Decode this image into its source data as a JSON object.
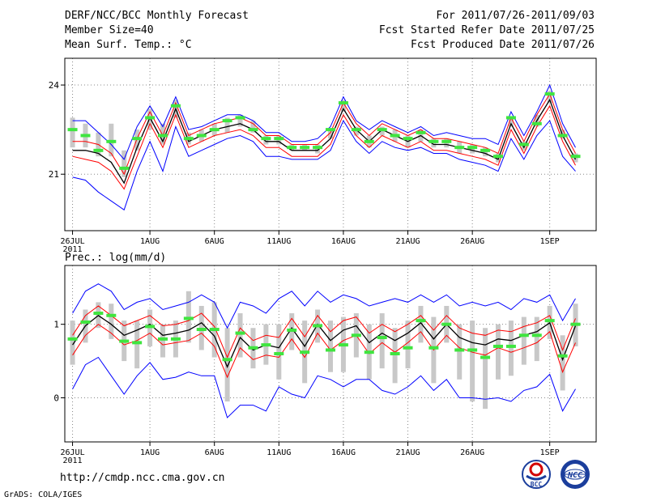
{
  "header": {
    "title": "DERF/NCC/BCC Monthly Forecast",
    "member_size": "Member Size=40",
    "variable": "Mean Surf. Temp.: °C",
    "period": "For 2011/07/26-2011/09/03",
    "started": "Fcst Started Refer Date 2011/07/25",
    "produced": "Fcst Produced Date 2011/07/26"
  },
  "footer": {
    "url": "http://cmdp.ncc.cma.gov.cn",
    "grads": "GrADS: COLA/IGES",
    "logo_left_text": "BCC",
    "logo_right_text": "NCC"
  },
  "colors": {
    "box": "#c8c8c8",
    "median": "#3fe53f",
    "mean": "#000000",
    "sd": "#ff0000",
    "extreme": "#0000ff",
    "grid": "#888888"
  },
  "chart_data": [
    {
      "id": "temp",
      "type": "line",
      "title": "",
      "ylabel": "Mean Surf. Temp.: °C",
      "ylim": [
        19.1,
        24.9
      ],
      "yticks": [
        21,
        24
      ],
      "xlim": [
        -0.6,
        40.6
      ],
      "xticks": [
        {
          "x": 0,
          "label": "26JUL",
          "sub": "2011"
        },
        {
          "x": 6,
          "label": "1AUG"
        },
        {
          "x": 11,
          "label": "6AUG"
        },
        {
          "x": 16,
          "label": "11AUG"
        },
        {
          "x": 21,
          "label": "16AUG"
        },
        {
          "x": 26,
          "label": "21AUG"
        },
        {
          "x": 31,
          "label": "26AUG"
        },
        {
          "x": 37,
          "label": "1SEP"
        }
      ],
      "x": [
        0,
        1,
        2,
        3,
        4,
        5,
        6,
        7,
        8,
        9,
        10,
        11,
        12,
        13,
        14,
        15,
        16,
        17,
        18,
        19,
        20,
        21,
        22,
        23,
        24,
        25,
        26,
        27,
        28,
        29,
        30,
        31,
        32,
        33,
        34,
        35,
        36,
        37,
        38,
        39
      ],
      "series": [
        {
          "name": "mean",
          "values": [
            21.8,
            21.8,
            21.7,
            21.4,
            20.7,
            21.9,
            22.9,
            22.1,
            23.2,
            22.1,
            22.3,
            22.5,
            22.6,
            22.7,
            22.5,
            22.1,
            22.1,
            21.8,
            21.8,
            21.8,
            22.2,
            23.2,
            22.5,
            22.1,
            22.5,
            22.3,
            22.1,
            22.3,
            22.0,
            22.0,
            21.9,
            21.8,
            21.7,
            21.5,
            22.7,
            21.9,
            22.8,
            23.5,
            22.3,
            21.5
          ]
        },
        {
          "name": "sd_upper",
          "values": [
            22.1,
            22.1,
            22.0,
            21.7,
            21.0,
            22.2,
            23.1,
            22.3,
            23.4,
            22.3,
            22.5,
            22.7,
            22.8,
            22.9,
            22.7,
            22.3,
            22.3,
            22.0,
            22.0,
            22.0,
            22.4,
            23.4,
            22.7,
            22.3,
            22.7,
            22.5,
            22.3,
            22.5,
            22.2,
            22.2,
            22.1,
            22.0,
            21.9,
            21.7,
            22.9,
            22.1,
            23.0,
            23.7,
            22.5,
            21.7
          ]
        },
        {
          "name": "sd_lower",
          "values": [
            21.6,
            21.5,
            21.4,
            21.1,
            20.5,
            21.6,
            22.7,
            21.9,
            23.0,
            21.9,
            22.1,
            22.3,
            22.4,
            22.5,
            22.3,
            21.9,
            21.9,
            21.6,
            21.6,
            21.6,
            22.0,
            23.0,
            22.3,
            21.9,
            22.3,
            22.1,
            21.9,
            22.1,
            21.8,
            21.8,
            21.7,
            21.6,
            21.5,
            21.3,
            22.5,
            21.7,
            22.6,
            23.3,
            22.1,
            21.3
          ]
        },
        {
          "name": "max",
          "values": [
            22.8,
            22.8,
            22.4,
            22.0,
            21.5,
            22.6,
            23.3,
            22.6,
            23.6,
            22.5,
            22.6,
            22.8,
            23.0,
            23.0,
            22.8,
            22.4,
            22.4,
            22.1,
            22.1,
            22.2,
            22.6,
            23.6,
            22.8,
            22.5,
            22.8,
            22.6,
            22.4,
            22.6,
            22.3,
            22.4,
            22.3,
            22.2,
            22.2,
            22.0,
            23.1,
            22.3,
            23.1,
            24.0,
            22.7,
            21.9
          ]
        },
        {
          "name": "min",
          "values": [
            20.9,
            20.8,
            20.4,
            20.1,
            19.8,
            21.1,
            22.1,
            21.1,
            22.6,
            21.6,
            21.8,
            22.0,
            22.2,
            22.3,
            22.1,
            21.6,
            21.6,
            21.5,
            21.5,
            21.5,
            21.8,
            22.8,
            22.1,
            21.7,
            22.1,
            21.9,
            21.8,
            21.9,
            21.7,
            21.7,
            21.5,
            21.4,
            21.3,
            21.1,
            22.2,
            21.5,
            22.3,
            22.8,
            21.6,
            21.1
          ]
        },
        {
          "name": "median",
          "values": [
            22.5,
            22.3,
            21.8,
            22.1,
            21.2,
            22.2,
            22.9,
            22.3,
            23.3,
            22.2,
            22.3,
            22.5,
            22.8,
            22.9,
            22.5,
            22.2,
            22.2,
            21.9,
            21.9,
            21.9,
            22.5,
            23.4,
            22.5,
            22.1,
            22.5,
            22.3,
            22.2,
            22.4,
            22.1,
            22.1,
            21.9,
            21.9,
            21.8,
            21.6,
            22.9,
            22.0,
            22.7,
            23.7,
            22.3,
            21.6
          ]
        },
        {
          "name": "box_upper",
          "values": [
            22.9,
            22.7,
            22.4,
            22.7,
            21.8,
            22.5,
            23.2,
            22.7,
            23.5,
            22.4,
            22.5,
            22.7,
            22.9,
            23.0,
            22.8,
            22.3,
            22.3,
            22.0,
            22.0,
            22.0,
            22.5,
            23.5,
            22.6,
            22.3,
            22.6,
            22.5,
            22.3,
            22.5,
            22.2,
            22.2,
            22.1,
            22.0,
            21.9,
            21.7,
            22.9,
            22.1,
            23.0,
            23.8,
            22.5,
            21.7
          ]
        },
        {
          "name": "box_lower",
          "values": [
            21.9,
            21.9,
            21.6,
            21.6,
            20.9,
            21.8,
            22.5,
            22.0,
            22.9,
            22.0,
            22.1,
            22.3,
            22.4,
            22.6,
            22.4,
            22.0,
            22.0,
            21.8,
            21.8,
            21.7,
            22.2,
            23.1,
            22.3,
            21.9,
            22.3,
            22.1,
            21.9,
            22.1,
            21.9,
            21.9,
            21.7,
            21.7,
            21.6,
            21.4,
            22.6,
            21.8,
            22.6,
            23.4,
            22.2,
            21.4
          ]
        }
      ]
    },
    {
      "id": "prec",
      "type": "line",
      "title": "",
      "ylabel": "Prec.: log(mm/d)",
      "ylim": [
        -0.6,
        1.8
      ],
      "yticks": [
        0,
        1
      ],
      "xlim": [
        -0.6,
        40.6
      ],
      "xticks": [
        {
          "x": 0,
          "label": "26JUL",
          "sub": "2011"
        },
        {
          "x": 6,
          "label": "1AUG"
        },
        {
          "x": 11,
          "label": "6AUG"
        },
        {
          "x": 16,
          "label": "11AUG"
        },
        {
          "x": 21,
          "label": "16AUG"
        },
        {
          "x": 26,
          "label": "21AUG"
        },
        {
          "x": 31,
          "label": "26AUG"
        },
        {
          "x": 37,
          "label": "1SEP"
        }
      ],
      "x": [
        0,
        1,
        2,
        3,
        4,
        5,
        6,
        7,
        8,
        9,
        10,
        11,
        12,
        13,
        14,
        15,
        16,
        17,
        18,
        19,
        20,
        21,
        22,
        23,
        24,
        25,
        26,
        27,
        28,
        29,
        30,
        31,
        32,
        33,
        34,
        35,
        36,
        37,
        38,
        39
      ],
      "series": [
        {
          "name": "mean",
          "values": [
            0.72,
            0.98,
            1.12,
            1.0,
            0.85,
            0.92,
            1.0,
            0.85,
            0.88,
            0.92,
            1.02,
            0.84,
            0.42,
            0.82,
            0.65,
            0.72,
            0.68,
            0.95,
            0.7,
            1.0,
            0.78,
            0.92,
            0.98,
            0.75,
            0.88,
            0.78,
            0.88,
            1.02,
            0.8,
            1.0,
            0.82,
            0.75,
            0.72,
            0.8,
            0.78,
            0.85,
            0.9,
            1.02,
            0.52,
            0.98
          ]
        },
        {
          "name": "sd_upper",
          "values": [
            0.85,
            1.12,
            1.25,
            1.12,
            0.98,
            1.05,
            1.12,
            0.98,
            1.0,
            1.05,
            1.15,
            0.97,
            0.55,
            0.95,
            0.78,
            0.85,
            0.82,
            1.08,
            0.83,
            1.12,
            0.9,
            1.05,
            1.1,
            0.88,
            1.0,
            0.9,
            1.0,
            1.12,
            0.92,
            1.12,
            0.95,
            0.88,
            0.85,
            0.92,
            0.9,
            0.97,
            1.02,
            1.12,
            0.65,
            1.08
          ]
        },
        {
          "name": "sd_lower",
          "values": [
            0.58,
            0.85,
            1.0,
            0.88,
            0.72,
            0.78,
            0.88,
            0.72,
            0.75,
            0.78,
            0.88,
            0.7,
            0.28,
            0.68,
            0.52,
            0.58,
            0.55,
            0.8,
            0.55,
            0.88,
            0.65,
            0.78,
            0.85,
            0.6,
            0.75,
            0.62,
            0.75,
            0.9,
            0.65,
            0.85,
            0.68,
            0.62,
            0.58,
            0.68,
            0.62,
            0.68,
            0.75,
            0.9,
            0.35,
            0.75
          ]
        },
        {
          "name": "max",
          "values": [
            1.15,
            1.45,
            1.55,
            1.45,
            1.2,
            1.3,
            1.35,
            1.2,
            1.25,
            1.3,
            1.4,
            1.3,
            0.95,
            1.3,
            1.25,
            1.15,
            1.35,
            1.45,
            1.25,
            1.45,
            1.3,
            1.4,
            1.35,
            1.25,
            1.3,
            1.35,
            1.3,
            1.4,
            1.3,
            1.4,
            1.25,
            1.3,
            1.25,
            1.3,
            1.2,
            1.35,
            1.3,
            1.4,
            1.05,
            1.35
          ]
        },
        {
          "name": "min",
          "values": [
            0.12,
            0.45,
            0.55,
            0.3,
            0.05,
            0.3,
            0.48,
            0.25,
            0.28,
            0.35,
            0.3,
            0.3,
            -0.27,
            -0.1,
            -0.1,
            -0.18,
            0.15,
            0.05,
            0.0,
            0.3,
            0.25,
            0.15,
            0.25,
            0.25,
            0.1,
            0.05,
            0.15,
            0.3,
            0.1,
            0.25,
            0.0,
            0.0,
            -0.02,
            0.0,
            -0.05,
            0.1,
            0.15,
            0.32,
            -0.18,
            0.12
          ]
        },
        {
          "name": "median",
          "values": [
            0.8,
            1.03,
            1.15,
            1.12,
            0.77,
            0.75,
            0.97,
            0.8,
            0.8,
            1.08,
            0.93,
            0.93,
            0.52,
            0.88,
            0.68,
            0.72,
            0.6,
            0.92,
            0.62,
            0.98,
            0.65,
            0.72,
            0.85,
            0.62,
            0.82,
            0.6,
            0.68,
            1.05,
            0.68,
            1.0,
            0.65,
            0.65,
            0.55,
            0.7,
            0.7,
            0.85,
            0.85,
            1.05,
            0.57,
            1.0
          ]
        },
        {
          "name": "box_upper",
          "values": [
            1.05,
            1.2,
            1.3,
            1.28,
            1.05,
            1.05,
            1.2,
            1.0,
            1.05,
            1.45,
            1.25,
            1.3,
            0.95,
            1.15,
            0.95,
            1.0,
            1.0,
            1.15,
            1.05,
            1.2,
            1.05,
            1.1,
            1.15,
            1.0,
            1.15,
            0.95,
            1.05,
            1.25,
            1.1,
            1.25,
            1.0,
            1.05,
            0.95,
            1.0,
            1.05,
            1.1,
            1.1,
            1.25,
            0.85,
            1.28
          ]
        },
        {
          "name": "box_lower",
          "values": [
            0.45,
            0.75,
            0.95,
            0.8,
            0.5,
            0.4,
            0.7,
            0.55,
            0.55,
            0.75,
            0.65,
            0.55,
            -0.05,
            0.55,
            0.4,
            0.45,
            0.25,
            0.65,
            0.2,
            0.75,
            0.35,
            0.35,
            0.55,
            0.25,
            0.4,
            0.2,
            0.4,
            0.75,
            0.2,
            0.75,
            0.25,
            -0.05,
            -0.15,
            0.25,
            0.3,
            0.45,
            0.5,
            0.8,
            0.1,
            0.7
          ]
        }
      ]
    }
  ]
}
